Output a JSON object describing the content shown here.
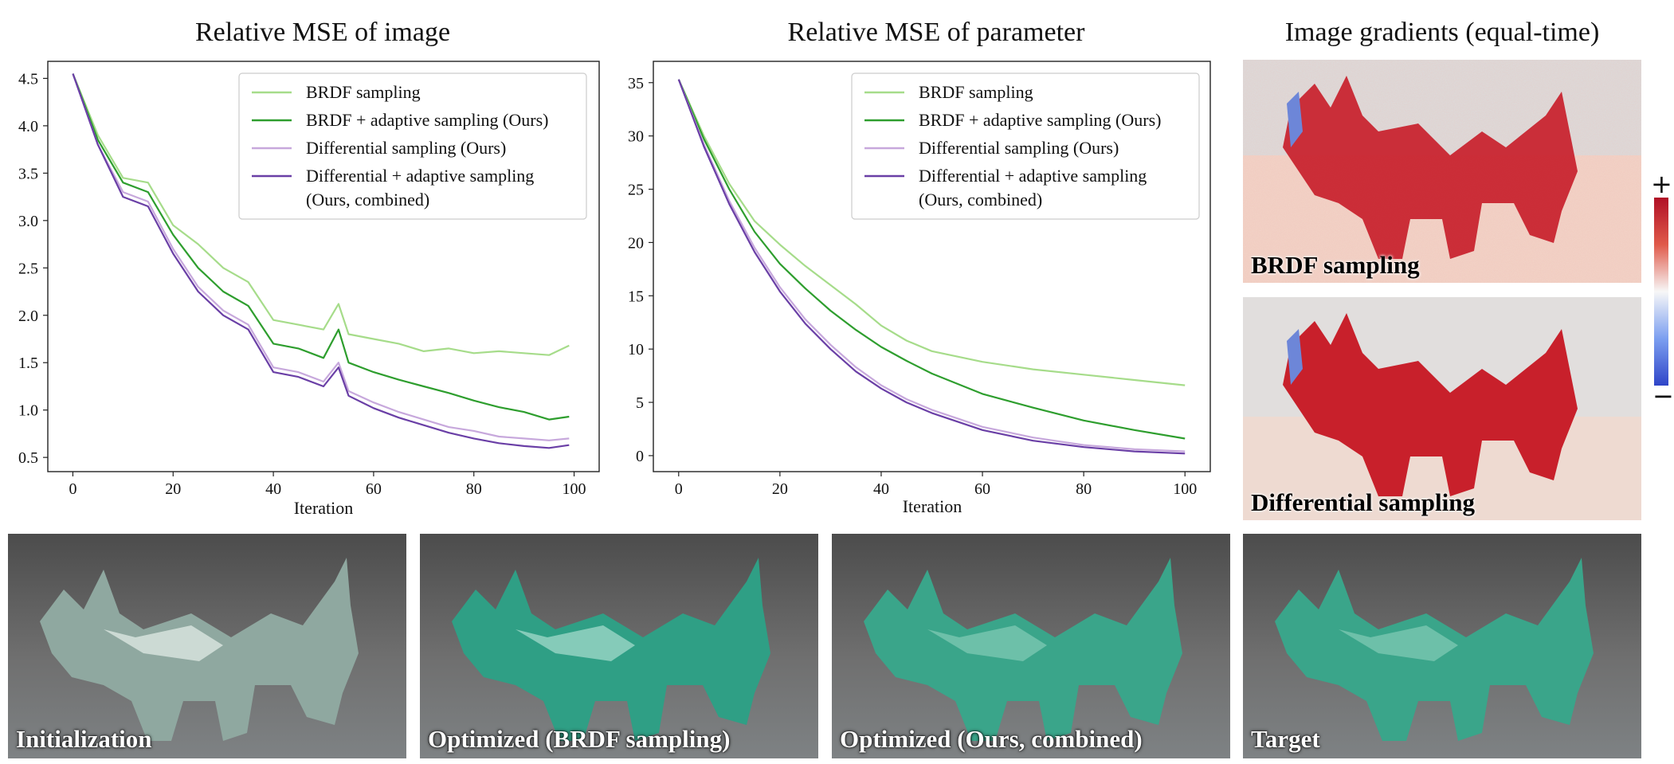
{
  "titles": {
    "image_mse": "Relative MSE of image",
    "param_mse": "Relative MSE of parameter",
    "gradients": "Image gradients (equal-time)"
  },
  "legend": {
    "brdf": "BRDF sampling",
    "brdf_adaptive": "BRDF + adaptive sampling (Ours)",
    "differential": "Differential sampling (Ours)",
    "differential_adaptive_1": "Differential + adaptive sampling",
    "differential_adaptive_2": "(Ours, combined)"
  },
  "colors": {
    "brdf": "#a6dc8a",
    "brdf_adaptive": "#2e9e2e",
    "differential": "#c7a8dc",
    "differential_adaptive": "#6a3fa6",
    "dragon": "#3aa58a",
    "grad_positive": "#cc1f2a",
    "grad_negative": "#3d5bd6"
  },
  "gradient_panels": {
    "top_label": "BRDF sampling",
    "bottom_label": "Differential sampling",
    "colorbar_plus": "+",
    "colorbar_minus": "−"
  },
  "photos": [
    {
      "label": "Initialization",
      "variant": "init"
    },
    {
      "label": "Optimized (BRDF sampling)",
      "variant": "brdf"
    },
    {
      "label": "Optimized (Ours, combined)",
      "variant": "ours"
    },
    {
      "label": "Target",
      "variant": "target"
    }
  ],
  "chart_data": [
    {
      "type": "line",
      "title": "Relative MSE of image",
      "xlabel": "Iteration",
      "ylabel": "",
      "xlim": [
        -5,
        105
      ],
      "ylim": [
        0.35,
        4.68
      ],
      "xticks": [
        0,
        20,
        40,
        60,
        80,
        100
      ],
      "yticks": [
        0.5,
        1.0,
        1.5,
        2.0,
        2.5,
        3.0,
        3.5,
        4.0,
        4.5
      ],
      "legend_position": "top-right",
      "series": [
        {
          "name": "BRDF sampling",
          "color_key": "brdf",
          "x": [
            0,
            5,
            10,
            15,
            20,
            25,
            30,
            35,
            40,
            45,
            50,
            53,
            55,
            60,
            65,
            70,
            75,
            80,
            85,
            90,
            95,
            99
          ],
          "values": [
            4.55,
            3.9,
            3.45,
            3.4,
            2.95,
            2.75,
            2.5,
            2.35,
            1.95,
            1.9,
            1.85,
            2.12,
            1.8,
            1.75,
            1.7,
            1.62,
            1.65,
            1.6,
            1.62,
            1.6,
            1.58,
            1.68
          ]
        },
        {
          "name": "BRDF + adaptive sampling (Ours)",
          "color_key": "brdf_adaptive",
          "x": [
            0,
            5,
            10,
            15,
            20,
            25,
            30,
            35,
            40,
            45,
            50,
            53,
            55,
            60,
            65,
            70,
            75,
            80,
            85,
            90,
            95,
            99
          ],
          "values": [
            4.55,
            3.85,
            3.4,
            3.3,
            2.85,
            2.5,
            2.25,
            2.1,
            1.7,
            1.65,
            1.55,
            1.85,
            1.5,
            1.4,
            1.32,
            1.25,
            1.18,
            1.1,
            1.03,
            0.98,
            0.9,
            0.93
          ]
        },
        {
          "name": "Differential sampling (Ours)",
          "color_key": "differential",
          "x": [
            0,
            5,
            10,
            15,
            20,
            25,
            30,
            35,
            40,
            45,
            50,
            53,
            55,
            60,
            65,
            70,
            75,
            80,
            85,
            90,
            95,
            99
          ],
          "values": [
            4.55,
            3.8,
            3.3,
            3.2,
            2.7,
            2.3,
            2.05,
            1.9,
            1.45,
            1.4,
            1.3,
            1.5,
            1.2,
            1.08,
            0.98,
            0.9,
            0.82,
            0.78,
            0.72,
            0.7,
            0.68,
            0.7
          ]
        },
        {
          "name": "Differential + adaptive sampling (Ours, combined)",
          "color_key": "differential_adaptive",
          "x": [
            0,
            5,
            10,
            15,
            20,
            25,
            30,
            35,
            40,
            45,
            50,
            53,
            55,
            60,
            65,
            70,
            75,
            80,
            85,
            90,
            95,
            99
          ],
          "values": [
            4.55,
            3.8,
            3.25,
            3.15,
            2.65,
            2.25,
            2.0,
            1.85,
            1.4,
            1.35,
            1.25,
            1.45,
            1.15,
            1.02,
            0.92,
            0.84,
            0.76,
            0.7,
            0.65,
            0.62,
            0.6,
            0.63
          ]
        }
      ]
    },
    {
      "type": "line",
      "title": "Relative MSE of parameter",
      "xlabel": "Iteration",
      "ylabel": "",
      "xlim": [
        -5,
        105
      ],
      "ylim": [
        -1.5,
        37
      ],
      "xticks": [
        0,
        20,
        40,
        60,
        80,
        100
      ],
      "yticks": [
        0,
        5,
        10,
        15,
        20,
        25,
        30,
        35
      ],
      "legend_position": "top-right",
      "series": [
        {
          "name": "BRDF sampling",
          "color_key": "brdf",
          "x": [
            0,
            5,
            10,
            15,
            20,
            25,
            30,
            35,
            40,
            45,
            50,
            60,
            70,
            80,
            90,
            100
          ],
          "values": [
            35.3,
            30.0,
            25.5,
            22.0,
            19.8,
            17.8,
            16.0,
            14.2,
            12.2,
            10.8,
            9.8,
            8.8,
            8.1,
            7.6,
            7.1,
            6.6
          ]
        },
        {
          "name": "BRDF + adaptive sampling (Ours)",
          "color_key": "brdf_adaptive",
          "x": [
            0,
            5,
            10,
            15,
            20,
            25,
            30,
            35,
            40,
            45,
            50,
            60,
            70,
            80,
            90,
            100
          ],
          "values": [
            35.3,
            29.7,
            25.0,
            21.0,
            18.0,
            15.7,
            13.6,
            11.8,
            10.2,
            8.9,
            7.7,
            5.8,
            4.5,
            3.3,
            2.4,
            1.6
          ]
        },
        {
          "name": "Differential sampling (Ours)",
          "color_key": "differential",
          "x": [
            0,
            5,
            10,
            15,
            20,
            25,
            30,
            35,
            40,
            45,
            50,
            60,
            70,
            80,
            90,
            100
          ],
          "values": [
            35.3,
            29.2,
            23.9,
            19.5,
            15.8,
            12.8,
            10.4,
            8.3,
            6.6,
            5.3,
            4.3,
            2.7,
            1.7,
            1.0,
            0.6,
            0.4
          ]
        },
        {
          "name": "Differential + adaptive sampling (Ours, combined)",
          "color_key": "differential_adaptive",
          "x": [
            0,
            5,
            10,
            15,
            20,
            25,
            30,
            35,
            40,
            45,
            50,
            60,
            70,
            80,
            90,
            100
          ],
          "values": [
            35.3,
            29.0,
            23.6,
            19.1,
            15.4,
            12.4,
            10.0,
            7.9,
            6.3,
            5.0,
            4.0,
            2.4,
            1.4,
            0.8,
            0.4,
            0.2
          ]
        }
      ]
    }
  ]
}
